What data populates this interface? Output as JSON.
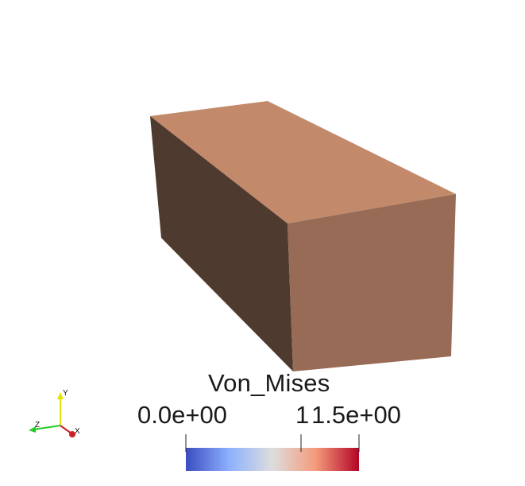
{
  "scene": {
    "box_faces": {
      "top_color": "#c2896a",
      "front_color": "#976b56",
      "side_color": "#4f3a30"
    },
    "background": "#ffffff"
  },
  "color_legend": {
    "title": "Von_Mises",
    "range_min_label": "0.0e+00",
    "mid_label": "1",
    "range_max_label": "1.5e+00",
    "colormap": [
      "#3b4cc0",
      "#8db0fe",
      "#dddddd",
      "#f49a7b",
      "#b40426"
    ]
  },
  "orientation_axes": {
    "x_label": "X",
    "y_label": "Y",
    "z_label": "Z",
    "x_color": "#cc2222",
    "y_color": "#e8e000",
    "z_color": "#22cc22"
  }
}
